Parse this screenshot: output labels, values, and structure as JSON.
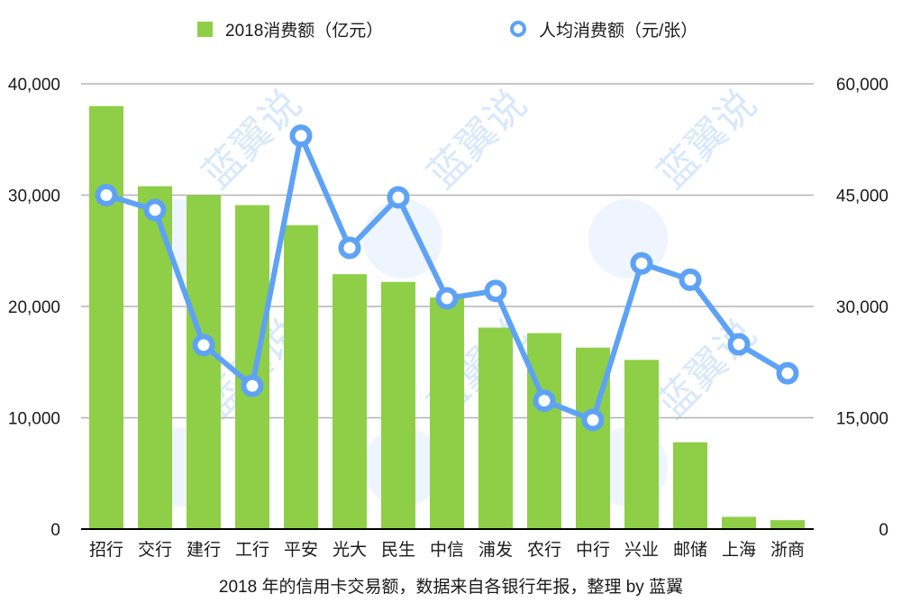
{
  "legend": {
    "bar_label": "2018消费额（亿元）",
    "line_label": "人均消费额（元/张）"
  },
  "caption": "2018 年的信用卡交易额，数据来自各银行年报，整理 by 蓝翼",
  "watermark": "蓝翼说",
  "colors": {
    "bar": "#8ecf47",
    "line": "#5ea2f5",
    "grid": "#b3b3b3",
    "axis": "#000000",
    "watermark": "#cfe3fb"
  },
  "chart_data": {
    "type": "bar+line",
    "title": "",
    "categories": [
      "招行",
      "交行",
      "建行",
      "工行",
      "平安",
      "光大",
      "民生",
      "中信",
      "浦发",
      "农行",
      "中行",
      "兴业",
      "邮储",
      "上海",
      "浙商"
    ],
    "series": [
      {
        "name": "2018消费额（亿元）",
        "type": "bar",
        "axis": "left",
        "values": [
          38000,
          30800,
          30000,
          29100,
          27300,
          22900,
          22200,
          20800,
          18100,
          17600,
          16300,
          15200,
          7800,
          1100,
          800
        ]
      },
      {
        "name": "人均消费额（元/张）",
        "type": "line",
        "axis": "right",
        "values": [
          45000,
          43000,
          24800,
          19300,
          53000,
          37900,
          44700,
          31100,
          32100,
          17300,
          14700,
          35800,
          33600,
          24900,
          21000
        ]
      }
    ],
    "left_axis": {
      "ylim": [
        0,
        40000
      ],
      "ticks": [
        0,
        10000,
        20000,
        30000,
        40000
      ],
      "tick_labels": [
        "0",
        "10,000",
        "20,000",
        "30,000",
        "40,000"
      ]
    },
    "right_axis": {
      "ylim": [
        0,
        60000
      ],
      "ticks": [
        0,
        15000,
        30000,
        45000,
        60000
      ],
      "tick_labels": [
        "0",
        "15,000",
        "30,000",
        "45,000",
        "60,000"
      ]
    },
    "xlabel": "2018 年的信用卡交易额，数据来自各银行年报，整理 by 蓝翼",
    "ylabel": "",
    "grid": true,
    "legend_position": "top"
  }
}
